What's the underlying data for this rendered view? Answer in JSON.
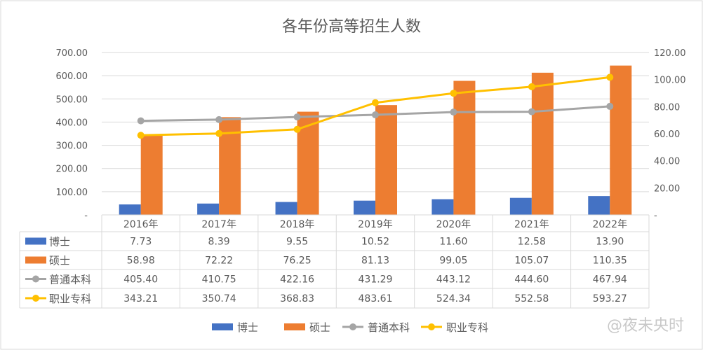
{
  "chart_data": {
    "type": "bar+line",
    "title": "各年份高等招生人数",
    "categories": [
      "2016年",
      "2017年",
      "2018年",
      "2019年",
      "2020年",
      "2021年",
      "2022年"
    ],
    "series": [
      {
        "name": "博士",
        "type": "bar",
        "axis": "right",
        "color": "#4472C4",
        "values": [
          7.73,
          8.39,
          9.55,
          10.52,
          11.6,
          12.58,
          13.9
        ],
        "labels": [
          "7.73",
          "8.39",
          "9.55",
          "10.52",
          "11.60",
          "12.58",
          "13.90"
        ]
      },
      {
        "name": "硕士",
        "type": "bar",
        "axis": "right",
        "color": "#ED7D31",
        "values": [
          58.98,
          72.22,
          76.25,
          81.13,
          99.05,
          105.07,
          110.35
        ],
        "labels": [
          "58.98",
          "72.22",
          "76.25",
          "81.13",
          "99.05",
          "105.07",
          "110.35"
        ]
      },
      {
        "name": "普通本科",
        "type": "line",
        "axis": "left",
        "color": "#A5A5A5",
        "values": [
          405.4,
          410.75,
          422.16,
          431.29,
          443.12,
          444.6,
          467.94
        ],
        "labels": [
          "405.40",
          "410.75",
          "422.16",
          "431.29",
          "443.12",
          "444.60",
          "467.94"
        ]
      },
      {
        "name": "职业专科",
        "type": "line",
        "axis": "left",
        "color": "#FFC000",
        "values": [
          343.21,
          350.74,
          368.83,
          483.61,
          524.34,
          552.58,
          593.27
        ],
        "labels": [
          "343.21",
          "350.74",
          "368.83",
          "483.61",
          "524.34",
          "552.58",
          "593.27"
        ]
      }
    ],
    "left_axis": {
      "range": [
        0,
        700
      ],
      "ticks": [
        "-",
        "100.00",
        "200.00",
        "300.00",
        "400.00",
        "500.00",
        "600.00",
        "700.00"
      ]
    },
    "right_axis": {
      "range": [
        0,
        120
      ],
      "ticks": [
        "-",
        "20.00",
        "40.00",
        "60.00",
        "80.00",
        "100.00",
        "120.00"
      ]
    },
    "legend": "bottom",
    "data_table": true
  },
  "watermark": "@夜未央时"
}
